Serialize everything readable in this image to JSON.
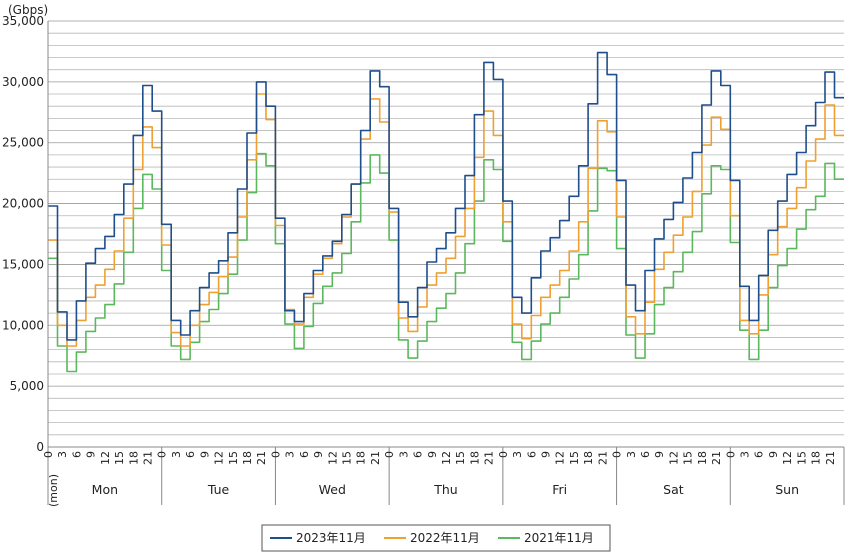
{
  "chart_data": {
    "type": "line",
    "y_unit": "(Gbps)",
    "x_unit": "(mon)",
    "ylim": [
      0,
      35000
    ],
    "y_ticks": [
      0,
      5000,
      10000,
      15000,
      20000,
      25000,
      30000,
      35000
    ],
    "y_tick_labels": [
      "0",
      "5,000",
      "10,000",
      "15,000",
      "20,000",
      "25,000",
      "30,000",
      "35,000"
    ],
    "grid": true,
    "days": [
      "Mon",
      "Tue",
      "Wed",
      "Thu",
      "Fri",
      "Sat",
      "Sun"
    ],
    "hour_ticks": [
      "0",
      "3",
      "6",
      "9",
      "12",
      "15",
      "18",
      "21"
    ],
    "legend_position": "bottom",
    "series": [
      {
        "name": "2023年11月",
        "color": "#1f4e8c",
        "days": [
          [
            19800,
            11100,
            8800,
            12000,
            15100,
            16300,
            17300,
            19100,
            21600,
            25600,
            29700,
            27600
          ],
          [
            18300,
            10400,
            9200,
            11200,
            13100,
            14300,
            15300,
            17600,
            21200,
            25800,
            30000,
            28000
          ],
          [
            18800,
            11200,
            10300,
            12600,
            14500,
            15700,
            16900,
            19100,
            21600,
            26000,
            30900,
            29600
          ],
          [
            19600,
            11900,
            10700,
            13100,
            15200,
            16300,
            17600,
            19600,
            22300,
            27300,
            31600,
            30200
          ],
          [
            20200,
            12300,
            11000,
            13900,
            16100,
            17200,
            18600,
            20600,
            23100,
            28200,
            32400,
            30600
          ],
          [
            21900,
            13300,
            11200,
            14500,
            17100,
            18700,
            20100,
            22100,
            24200,
            28100,
            30900,
            29700
          ],
          [
            21900,
            13200,
            10400,
            14100,
            17800,
            20200,
            22400,
            24200,
            26400,
            28300,
            30800,
            28700
          ]
        ]
      },
      {
        "name": "2022年11月",
        "color": "#f0a030",
        "days": [
          [
            17000,
            10000,
            8300,
            10400,
            12300,
            13300,
            14600,
            16100,
            18800,
            22800,
            26300,
            24600
          ],
          [
            16600,
            9400,
            8300,
            10000,
            11700,
            12700,
            14000,
            15600,
            18900,
            23600,
            29000,
            26900
          ],
          [
            18200,
            11300,
            10100,
            12300,
            14200,
            15500,
            16700,
            18900,
            21600,
            25300,
            28600,
            26700
          ],
          [
            19300,
            10600,
            9500,
            11500,
            13300,
            14300,
            15500,
            17300,
            19600,
            23800,
            27600,
            25600
          ],
          [
            18500,
            10100,
            8900,
            10800,
            12300,
            13300,
            14500,
            16100,
            18500,
            22900,
            26800,
            25900
          ],
          [
            18900,
            10700,
            9300,
            11900,
            14600,
            16000,
            17400,
            18900,
            21000,
            24800,
            27100,
            26100
          ],
          [
            19000,
            10400,
            9300,
            12500,
            15800,
            18100,
            19600,
            21300,
            23500,
            25300,
            28100,
            25600
          ]
        ]
      },
      {
        "name": "2021年11月",
        "color": "#5cb85c",
        "days": [
          [
            15500,
            8300,
            6200,
            7800,
            9500,
            10600,
            11700,
            13400,
            16000,
            19600,
            22400,
            21200
          ],
          [
            14500,
            8300,
            7200,
            8600,
            10300,
            11300,
            12600,
            14200,
            17000,
            20900,
            24100,
            23100
          ],
          [
            16700,
            10100,
            8100,
            9900,
            11800,
            13200,
            14300,
            15900,
            18500,
            21700,
            24000,
            22500
          ],
          [
            17000,
            8800,
            7300,
            8700,
            10300,
            11400,
            12600,
            14300,
            16700,
            20200,
            23600,
            22800
          ],
          [
            16900,
            8600,
            7200,
            8700,
            10100,
            11000,
            12300,
            13800,
            15800,
            19400,
            22900,
            22700
          ],
          [
            16300,
            9200,
            7300,
            9300,
            11700,
            13100,
            14400,
            16000,
            17700,
            20800,
            23100,
            22800
          ],
          [
            16800,
            9600,
            7200,
            9600,
            13100,
            14900,
            16300,
            17900,
            19500,
            20600,
            23300,
            22000
          ]
        ]
      }
    ]
  }
}
